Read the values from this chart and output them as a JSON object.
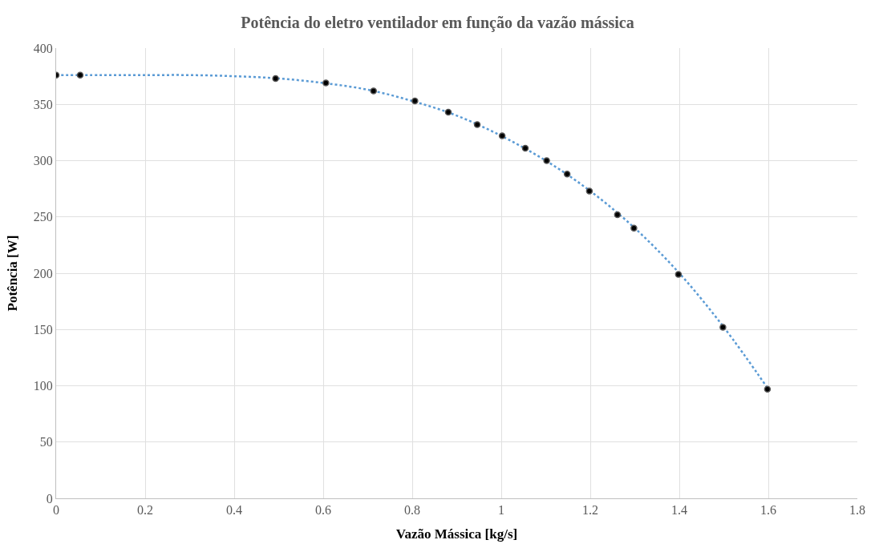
{
  "chart_data": {
    "type": "scatter",
    "title": "Potência do eletro ventilador em função da vazão mássica",
    "xlabel": "Vazão Mássica [kg/s]",
    "ylabel": "Potência [W]",
    "x": [
      0,
      0.054,
      0.493,
      0.606,
      0.713,
      0.806,
      0.881,
      0.946,
      1.002,
      1.054,
      1.102,
      1.148,
      1.198,
      1.261,
      1.298,
      1.398,
      1.498,
      1.598
    ],
    "series": [
      {
        "color": "#000000",
        "marker": "circle",
        "values": [
          376,
          376,
          373,
          369,
          362,
          353,
          343,
          332,
          322,
          311,
          300,
          288,
          273,
          252,
          240,
          199,
          152,
          97
        ]
      },
      {
        "type": "line",
        "color": "#5b9bd5",
        "line_style": "dotted",
        "marker": "none",
        "x": [
          0,
          0.1,
          0.2,
          0.3,
          0.4,
          0.5,
          0.6,
          0.7,
          0.8,
          0.9,
          1.0,
          1.1,
          1.2,
          1.3,
          1.4,
          1.5,
          1.6
        ],
        "values": [
          376,
          376,
          376,
          376,
          375,
          373,
          369,
          363,
          353,
          340,
          322,
          300,
          273,
          240,
          200,
          152,
          97
        ]
      }
    ],
    "xlim": [
      0,
      1.8
    ],
    "xticks": [
      0,
      0.2,
      0.4,
      0.6,
      0.8,
      1,
      1.2,
      1.4,
      1.6,
      1.8
    ],
    "ylim": [
      0,
      400
    ],
    "yticks": [
      0,
      50,
      100,
      150,
      200,
      250,
      300,
      350,
      400
    ],
    "grid": true
  }
}
